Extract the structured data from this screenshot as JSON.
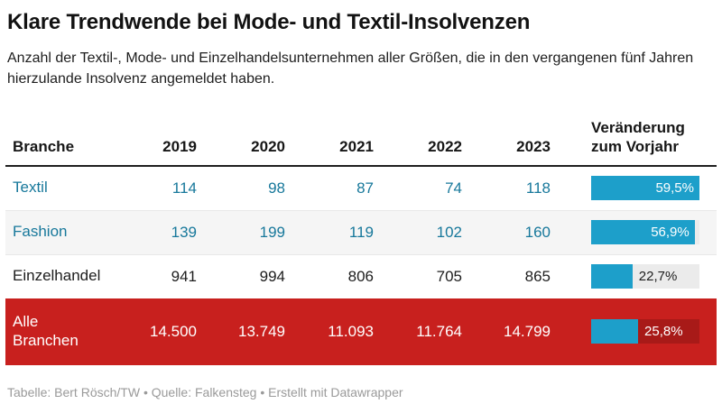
{
  "header": {
    "title": "Klare Trendwende bei Mode- und Textil-Insolvenzen",
    "subtitle": "Anzahl der Textil-, Mode- und Einzelhandelsunternehmen aller Größen, die in den vergangenen fünf Jahren hierzulande Insolvenz angemeldet haben."
  },
  "footer": {
    "credit": "Tabelle: Bert Rösch/TW • Quelle: Falkensteg • Erstellt mit Datawrapper"
  },
  "colors": {
    "accent_blue": "#1D9FCA",
    "teal_text": "#17789B",
    "highlight_red": "#C8201E",
    "highlight_track": "#A81A18",
    "track_gray": "#EBEBEB",
    "stripe_bg": "#F5F5F5",
    "row_border": "#E8E8E8",
    "footer_gray": "#9A9A9A"
  },
  "chart_data": {
    "type": "table",
    "title": "Klare Trendwende bei Mode- und Textil-Insolvenzen",
    "subtitle": "Anzahl der Textil-, Mode- und Einzelhandelsunternehmen aller Größen, die in den vergangenen fünf Jahren hierzulande Insolvenz angemeldet haben.",
    "columns": [
      "Branche",
      "2019",
      "2020",
      "2021",
      "2022",
      "2023",
      "Veränderung zum Vorjahr"
    ],
    "bar_max_pct": 59.5,
    "rows": [
      {
        "label": "Textil",
        "values": [
          "114",
          "98",
          "87",
          "74",
          "118"
        ],
        "change_pct": 59.5,
        "change_label": "59,5%",
        "style": "teal",
        "label_inside_bar": true
      },
      {
        "label": "Fashion",
        "values": [
          "139",
          "199",
          "119",
          "102",
          "160"
        ],
        "change_pct": 56.9,
        "change_label": "56,9%",
        "style": "teal striped",
        "label_inside_bar": true
      },
      {
        "label": "Einzelhandel",
        "values": [
          "941",
          "994",
          "806",
          "705",
          "865"
        ],
        "change_pct": 22.7,
        "change_label": "22,7%",
        "style": "plain",
        "label_inside_bar": false
      },
      {
        "label": "Alle Branchen",
        "values": [
          "14.500",
          "13.749",
          "11.093",
          "11.764",
          "14.799"
        ],
        "change_pct": 25.8,
        "change_label": "25,8%",
        "style": "highlight",
        "label_inside_bar": false
      }
    ]
  }
}
